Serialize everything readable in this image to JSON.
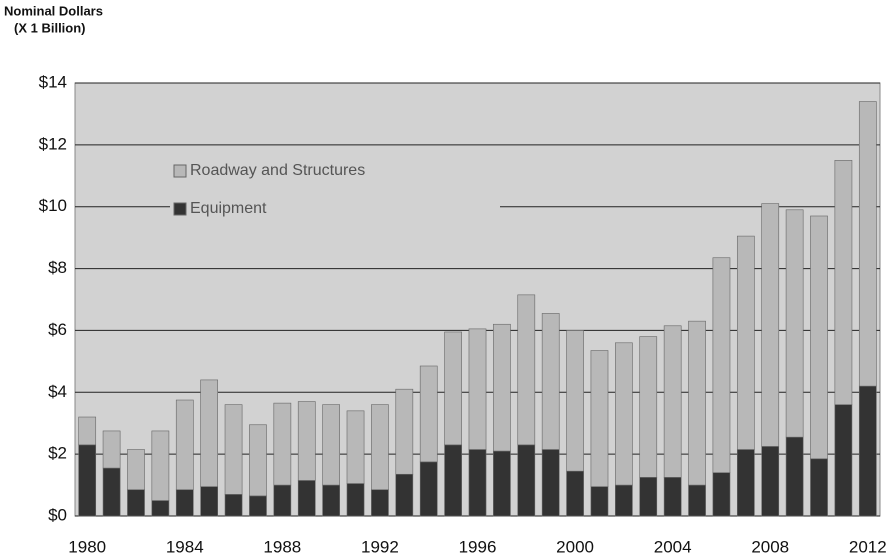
{
  "chart_data": {
    "type": "stacked_bar",
    "ylabel": "Nominal Dollars",
    "ylabel_sub": "(X 1 Billion)",
    "categories": [
      "1980",
      null,
      null,
      null,
      "1984",
      null,
      null,
      null,
      "1988",
      null,
      null,
      null,
      "1992",
      null,
      null,
      null,
      "1996",
      null,
      null,
      null,
      "2000",
      null,
      null,
      null,
      "2004",
      null,
      null,
      null,
      "2008",
      null,
      null,
      null,
      "2012"
    ],
    "series": [
      {
        "name": "Equipment",
        "color": "#333333",
        "values": [
          2.3,
          1.55,
          0.85,
          0.5,
          0.85,
          0.95,
          0.7,
          0.65,
          1.0,
          1.15,
          1.0,
          1.05,
          0.85,
          1.35,
          1.75,
          2.3,
          2.15,
          2.1,
          2.3,
          2.15,
          1.45,
          0.95,
          1.0,
          1.25,
          1.25,
          1.0,
          1.4,
          2.15,
          2.25,
          2.55,
          1.85,
          3.6,
          4.2
        ]
      },
      {
        "name": "Roadway and Structures",
        "color": "#b8b8b8",
        "values": [
          0.9,
          1.2,
          1.3,
          2.25,
          2.9,
          3.45,
          2.9,
          2.3,
          2.65,
          2.55,
          2.6,
          2.35,
          2.75,
          2.75,
          3.1,
          3.65,
          3.9,
          4.1,
          4.85,
          4.4,
          4.55,
          4.4,
          4.6,
          4.55,
          4.9,
          5.3,
          6.95,
          6.9,
          7.85,
          7.35,
          7.85,
          7.9,
          9.2
        ]
      }
    ],
    "ylim": [
      0,
      14
    ],
    "yticks": [
      {
        "value": 0,
        "label": "$0"
      },
      {
        "value": 2,
        "label": "$2"
      },
      {
        "value": 4,
        "label": "$4"
      },
      {
        "value": 6,
        "label": "$6"
      },
      {
        "value": 8,
        "label": "$8"
      },
      {
        "value": 10,
        "label": "$10"
      },
      {
        "value": 12,
        "label": "$12"
      },
      {
        "value": 14,
        "label": "$14"
      }
    ],
    "grid": true,
    "legend": "upper left"
  }
}
